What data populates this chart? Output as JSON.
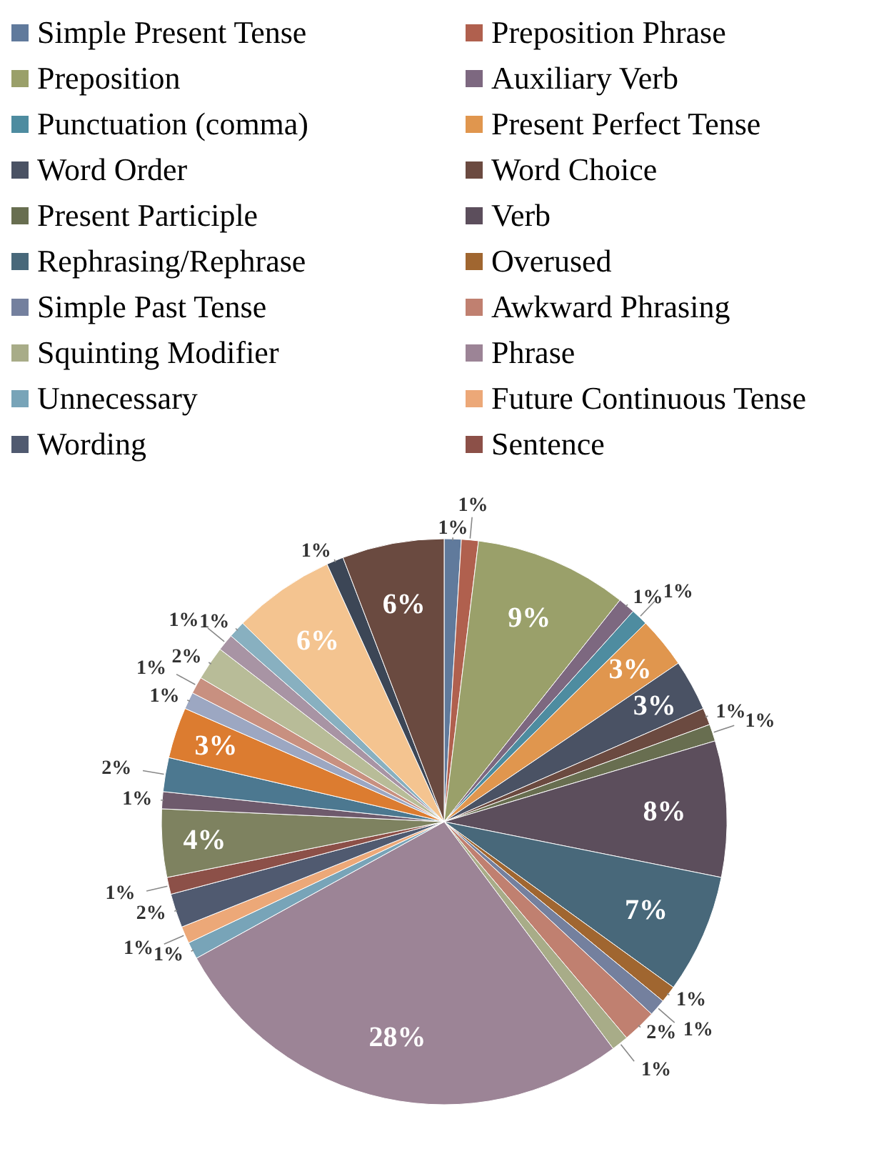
{
  "chart_data": {
    "type": "pie",
    "categories": [
      "Simple Present Tense",
      "Preposition Phrase",
      "Preposition",
      "Auxiliary Verb",
      "Punctuation (comma)",
      "Present Perfect Tense",
      "Word Order",
      "Word Choice",
      "Present Participle",
      "Verb",
      "Rephrasing/Rephrase",
      "Overused",
      "Simple Past Tense",
      "Awkward Phrasing",
      "Squinting Modifier",
      "Phrase",
      "Unnecessary",
      "Future Continuous Tense",
      "Wording",
      "Sentence",
      null,
      null,
      null,
      null,
      null,
      null,
      null,
      null,
      null,
      null,
      null,
      null
    ],
    "values": [
      1,
      1,
      9,
      1,
      1,
      3,
      3,
      1,
      1,
      8,
      7,
      1,
      1,
      2,
      1,
      28,
      1,
      1,
      2,
      1,
      4,
      1,
      2,
      3,
      1,
      1,
      2,
      1,
      1,
      6,
      1,
      6
    ],
    "value_labels": [
      "1%",
      "1%",
      "9%",
      "1%",
      "1%",
      "3%",
      "3%",
      "1%",
      "1%",
      "8%",
      "7%",
      "1%",
      "1%",
      "2%",
      "1%",
      "28%",
      "1%",
      "1%",
      "2%",
      "1%",
      "4%",
      "1%",
      "2%",
      "3%",
      "1%",
      "1%",
      "2%",
      "1%",
      "1%",
      "6%",
      "1%",
      "6%"
    ],
    "colors": [
      "#607a9c",
      "#b0604e",
      "#9aa06a",
      "#7d6880",
      "#4e8ca0",
      "#e0964e",
      "#4a5264",
      "#6b4a40",
      "#686e50",
      "#5c4e5c",
      "#48687a",
      "#a06630",
      "#74809e",
      "#c08070",
      "#a8ac88",
      "#9c8496",
      "#78a4b8",
      "#eca878",
      "#505a70",
      "#8c5048",
      "#7e8260",
      "#6e5a6c",
      "#4c7890",
      "#dc7c30",
      "#9ca7c2",
      "#c89080",
      "#b8bc98",
      "#a894a4",
      "#88b0c0",
      "#f4c490",
      "#3c4656",
      "#6a4a40"
    ],
    "legend": "top"
  }
}
